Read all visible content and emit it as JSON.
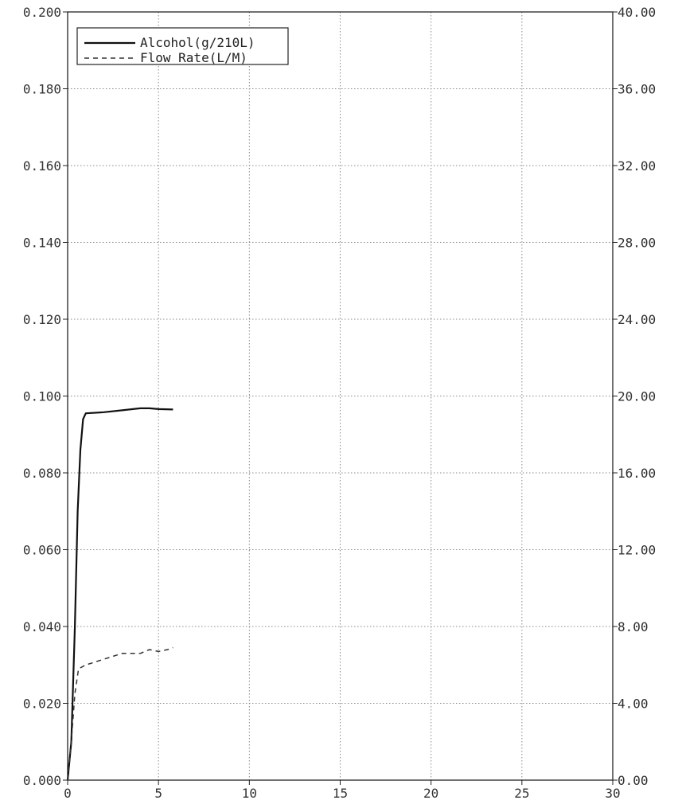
{
  "chart_data": {
    "type": "line",
    "title": "",
    "xlabel": "",
    "ylabel": "",
    "y2label": "",
    "xlim": [
      0,
      30
    ],
    "ylim": [
      0,
      0.2
    ],
    "y2lim": [
      0,
      40
    ],
    "grid": true,
    "legend_position": "top-left",
    "x_ticks": [
      "0",
      "5",
      "10",
      "15",
      "20",
      "25",
      "30"
    ],
    "y_ticks": [
      "0.000",
      "0.020",
      "0.040",
      "0.060",
      "0.080",
      "0.100",
      "0.120",
      "0.140",
      "0.160",
      "0.180",
      "0.200"
    ],
    "y2_ticks": [
      "0.00",
      "4.00",
      "8.00",
      "12.00",
      "16.00",
      "20.00",
      "24.00",
      "28.00",
      "32.00",
      "36.00",
      "40.00"
    ],
    "series": [
      {
        "name": "Alcohol(g/210L)",
        "axis": "left",
        "style": "solid",
        "color": "#111111",
        "x": [
          0.0,
          0.2,
          0.4,
          0.55,
          0.7,
          0.85,
          1.0,
          2.0,
          3.0,
          4.0,
          4.5,
          5.0,
          5.8
        ],
        "y": [
          0.0,
          0.01,
          0.04,
          0.07,
          0.086,
          0.094,
          0.0955,
          0.0958,
          0.0963,
          0.0968,
          0.0968,
          0.0966,
          0.0965
        ]
      },
      {
        "name": "Flow Rate(L/M)",
        "axis": "right",
        "style": "dashed",
        "color": "#333333",
        "x": [
          0.0,
          0.2,
          0.4,
          0.6,
          1.0,
          2.0,
          3.0,
          4.0,
          4.5,
          5.0,
          5.5,
          5.8
        ],
        "y": [
          0.0,
          2.0,
          4.5,
          5.8,
          6.0,
          6.3,
          6.6,
          6.6,
          6.8,
          6.7,
          6.8,
          6.9
        ]
      }
    ]
  }
}
